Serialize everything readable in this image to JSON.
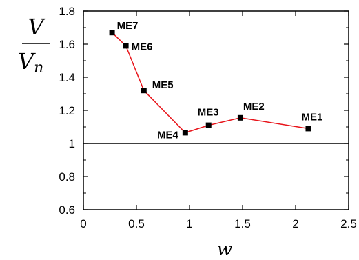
{
  "chart_data": {
    "type": "line",
    "title": "",
    "xlabel": "w",
    "ylabel": {
      "numerator": "V",
      "denominator": "V",
      "subscript": "n"
    },
    "xlim": [
      0,
      2.5
    ],
    "ylim": [
      0.6,
      1.8
    ],
    "xticks": [
      "0",
      "0.5",
      "1",
      "1.5",
      "2",
      "2.5"
    ],
    "yticks": [
      "0.6",
      "0.8",
      "1",
      "1.2",
      "1.4",
      "1.6",
      "1.8"
    ],
    "reference_line": 1,
    "grid": false,
    "series_color": "#e8141a",
    "points": [
      {
        "label": "ME7",
        "x": 0.27,
        "y": 1.67
      },
      {
        "label": "ME6",
        "x": 0.4,
        "y": 1.59
      },
      {
        "label": "ME5",
        "x": 0.57,
        "y": 1.32
      },
      {
        "label": "ME4",
        "x": 0.96,
        "y": 1.065
      },
      {
        "label": "ME3",
        "x": 1.18,
        "y": 1.11
      },
      {
        "label": "ME2",
        "x": 1.48,
        "y": 1.155
      },
      {
        "label": "ME1",
        "x": 2.12,
        "y": 1.09
      }
    ]
  }
}
